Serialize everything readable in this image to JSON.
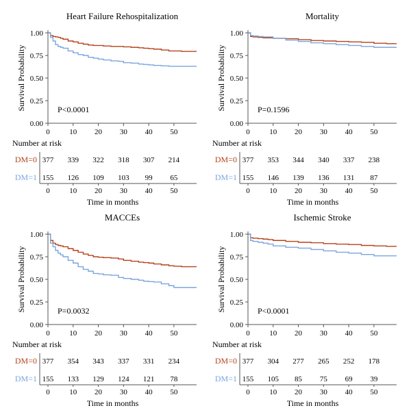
{
  "chart_data": [
    {
      "type": "line",
      "title": "Heart Failure Rehospitalization",
      "ylabel": "Survival Probability",
      "xlabel": "Time in months",
      "xlim": [
        0,
        59
      ],
      "ylim": [
        0,
        1
      ],
      "x_ticks": [
        "0",
        "10",
        "20",
        "30",
        "40",
        "50"
      ],
      "y_ticks": [
        "0.00",
        "0.25",
        "0.50",
        "0.75",
        "1.00"
      ],
      "annotation": "P<0.0001",
      "risk_table_title": "Number at risk",
      "series": [
        {
          "name": "DM=0",
          "color": "#b5421a",
          "x": [
            0,
            1,
            2,
            3,
            4,
            5,
            6,
            8,
            10,
            12,
            14,
            16,
            18,
            20,
            22,
            25,
            28,
            30,
            33,
            36,
            38,
            40,
            42,
            45,
            48,
            50,
            53,
            56,
            59
          ],
          "y": [
            1.0,
            0.97,
            0.96,
            0.955,
            0.95,
            0.94,
            0.93,
            0.91,
            0.9,
            0.885,
            0.875,
            0.865,
            0.86,
            0.86,
            0.855,
            0.85,
            0.85,
            0.845,
            0.84,
            0.835,
            0.83,
            0.825,
            0.82,
            0.81,
            0.8,
            0.8,
            0.795,
            0.795,
            0.795
          ],
          "at_risk": [
            377,
            339,
            322,
            318,
            307,
            214
          ]
        },
        {
          "name": "DM=1",
          "color": "#7aa5dd",
          "x": [
            0,
            1,
            2,
            3,
            4,
            5,
            6,
            8,
            10,
            12,
            14,
            16,
            18,
            20,
            22,
            25,
            28,
            30,
            33,
            36,
            38,
            40,
            42,
            45,
            48,
            50,
            53,
            56,
            59
          ],
          "y": [
            1.0,
            0.95,
            0.91,
            0.87,
            0.85,
            0.84,
            0.83,
            0.8,
            0.78,
            0.76,
            0.75,
            0.73,
            0.72,
            0.71,
            0.7,
            0.69,
            0.685,
            0.67,
            0.665,
            0.655,
            0.65,
            0.645,
            0.64,
            0.635,
            0.63,
            0.63,
            0.63,
            0.63,
            0.63
          ],
          "at_risk": [
            155,
            126,
            109,
            103,
            99,
            65
          ]
        }
      ]
    },
    {
      "type": "line",
      "title": "Mortality",
      "ylabel": "Survival Probability",
      "xlabel": "Time in months",
      "xlim": [
        0,
        59
      ],
      "ylim": [
        0,
        1
      ],
      "x_ticks": [
        "0",
        "10",
        "20",
        "30",
        "40",
        "50"
      ],
      "y_ticks": [
        "0.00",
        "0.25",
        "0.50",
        "0.75",
        "1.00"
      ],
      "annotation": "P=0.1596",
      "risk_table_title": "Number at risk",
      "series": [
        {
          "name": "DM=0",
          "color": "#b5421a",
          "x": [
            0,
            1,
            2,
            4,
            6,
            10,
            15,
            20,
            25,
            30,
            35,
            40,
            45,
            50,
            55,
            59
          ],
          "y": [
            1.0,
            0.96,
            0.955,
            0.95,
            0.945,
            0.94,
            0.935,
            0.925,
            0.915,
            0.91,
            0.905,
            0.9,
            0.895,
            0.885,
            0.88,
            0.88
          ],
          "at_risk": [
            377,
            353,
            344,
            340,
            337,
            238
          ]
        },
        {
          "name": "DM=1",
          "color": "#7aa5dd",
          "x": [
            0,
            1,
            2,
            4,
            6,
            10,
            15,
            20,
            25,
            30,
            35,
            40,
            45,
            50,
            55,
            59
          ],
          "y": [
            1.0,
            0.97,
            0.965,
            0.96,
            0.955,
            0.94,
            0.92,
            0.905,
            0.89,
            0.88,
            0.87,
            0.86,
            0.85,
            0.84,
            0.84,
            0.84
          ],
          "at_risk": [
            155,
            146,
            139,
            136,
            131,
            87
          ]
        }
      ]
    },
    {
      "type": "line",
      "title": "MACCEs",
      "ylabel": "Survival Probability",
      "xlabel": "Time in months",
      "xlim": [
        0,
        59
      ],
      "ylim": [
        0,
        1
      ],
      "x_ticks": [
        "0",
        "10",
        "20",
        "30",
        "40",
        "50"
      ],
      "y_ticks": [
        "0.00",
        "0.25",
        "0.50",
        "0.75",
        "1.00"
      ],
      "annotation": "P=0.0032",
      "risk_table_title": "Number at risk",
      "series": [
        {
          "name": "DM=0",
          "color": "#b5421a",
          "x": [
            0,
            1,
            2,
            3,
            4,
            5,
            6,
            8,
            10,
            12,
            14,
            16,
            18,
            20,
            22,
            25,
            28,
            30,
            33,
            36,
            38,
            40,
            42,
            45,
            48,
            50,
            53,
            56,
            59
          ],
          "y": [
            1.0,
            0.93,
            0.9,
            0.885,
            0.875,
            0.87,
            0.86,
            0.84,
            0.82,
            0.8,
            0.78,
            0.765,
            0.75,
            0.745,
            0.74,
            0.735,
            0.725,
            0.71,
            0.7,
            0.69,
            0.685,
            0.68,
            0.67,
            0.66,
            0.65,
            0.645,
            0.64,
            0.64,
            0.64
          ],
          "at_risk": [
            377,
            354,
            343,
            337,
            331,
            234
          ]
        },
        {
          "name": "DM=1",
          "color": "#7aa5dd",
          "x": [
            0,
            1,
            2,
            3,
            4,
            5,
            6,
            8,
            10,
            12,
            14,
            16,
            18,
            20,
            22,
            25,
            28,
            30,
            33,
            36,
            38,
            40,
            42,
            45,
            48,
            50,
            53,
            56,
            59
          ],
          "y": [
            1.0,
            0.9,
            0.86,
            0.82,
            0.79,
            0.77,
            0.75,
            0.71,
            0.68,
            0.64,
            0.61,
            0.59,
            0.565,
            0.56,
            0.55,
            0.545,
            0.52,
            0.51,
            0.5,
            0.49,
            0.48,
            0.475,
            0.47,
            0.45,
            0.43,
            0.41,
            0.41,
            0.41,
            0.41
          ],
          "at_risk": [
            155,
            133,
            129,
            124,
            121,
            78
          ]
        }
      ]
    },
    {
      "type": "line",
      "title": "Ischemic Stroke",
      "ylabel": "Survival Probability",
      "xlabel": "Time in months",
      "xlim": [
        0,
        59
      ],
      "ylim": [
        0,
        1
      ],
      "x_ticks": [
        "0",
        "10",
        "20",
        "30",
        "40",
        "50"
      ],
      "y_ticks": [
        "0.00",
        "0.25",
        "0.50",
        "0.75",
        "1.00"
      ],
      "annotation": "P<0.0001",
      "risk_table_title": "Number at risk",
      "series": [
        {
          "name": "DM=0",
          "color": "#b5421a",
          "x": [
            0,
            1,
            2,
            4,
            6,
            8,
            10,
            15,
            20,
            25,
            30,
            35,
            40,
            45,
            50,
            55,
            59
          ],
          "y": [
            1.0,
            0.96,
            0.955,
            0.95,
            0.945,
            0.94,
            0.93,
            0.92,
            0.91,
            0.905,
            0.895,
            0.89,
            0.885,
            0.875,
            0.87,
            0.865,
            0.865
          ],
          "at_risk": [
            377,
            304,
            277,
            265,
            252,
            178
          ]
        },
        {
          "name": "DM=1",
          "color": "#7aa5dd",
          "x": [
            0,
            1,
            2,
            4,
            6,
            8,
            10,
            15,
            20,
            25,
            30,
            35,
            40,
            45,
            50,
            55,
            59
          ],
          "y": [
            1.0,
            0.93,
            0.92,
            0.91,
            0.9,
            0.89,
            0.87,
            0.855,
            0.845,
            0.83,
            0.815,
            0.8,
            0.79,
            0.775,
            0.76,
            0.76,
            0.76
          ],
          "at_risk": [
            155,
            105,
            85,
            75,
            69,
            39
          ]
        }
      ]
    }
  ]
}
